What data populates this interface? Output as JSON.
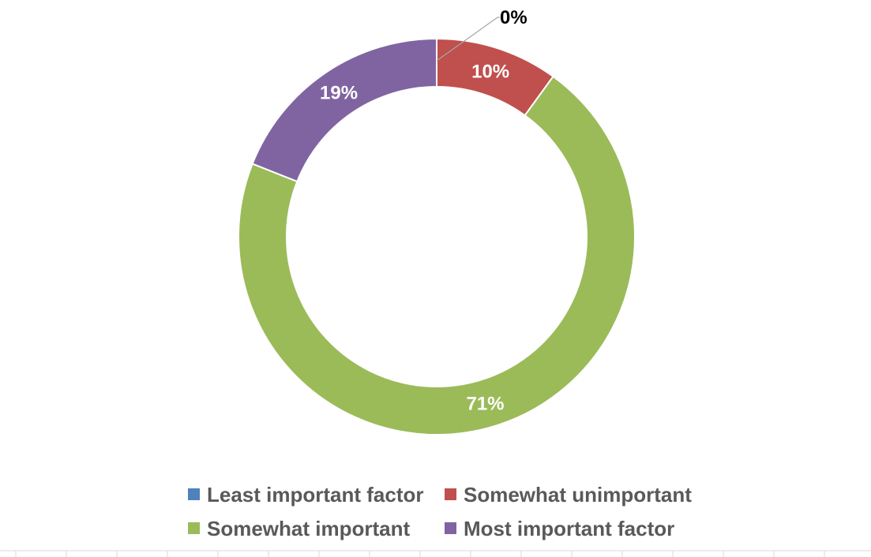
{
  "chart_data": {
    "type": "pie",
    "variant": "donut",
    "categories": [
      "Least important factor",
      "Somewhat unimportant",
      "Somewhat important",
      "Most important factor"
    ],
    "values": [
      0,
      10,
      71,
      19
    ],
    "labels": [
      "0%",
      "10%",
      "71%",
      "19%"
    ],
    "colors": [
      "#4F81BD",
      "#C0504D",
      "#9BBB59",
      "#8064A2"
    ],
    "label_colors": [
      "#000000",
      "#ffffff",
      "#ffffff",
      "#ffffff"
    ],
    "legend_position": "bottom",
    "start_angle": "top, clockwise",
    "title": ""
  }
}
